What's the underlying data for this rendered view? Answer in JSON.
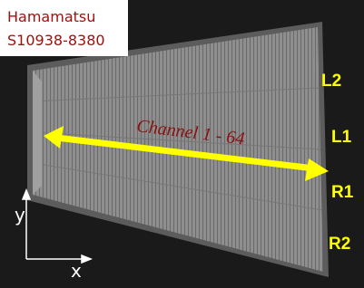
{
  "label_box": {
    "lines": [
      "Hamamatsu",
      "S10938-8380"
    ]
  },
  "arrow_label": "Channel 1 - 64",
  "strip_labels": [
    "L2",
    "L1",
    "R1",
    "R2"
  ],
  "axes": {
    "y": "y",
    "x": "x"
  }
}
